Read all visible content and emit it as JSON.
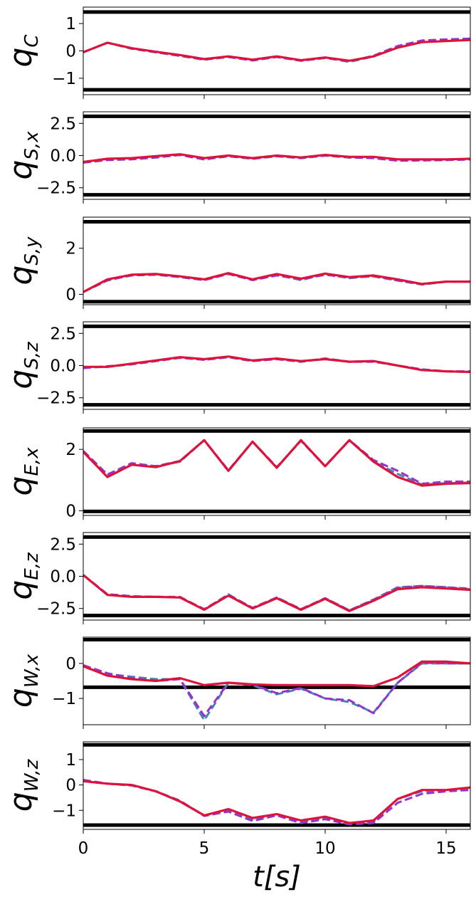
{
  "chart_data": {
    "type": "line",
    "xlabel": {
      "base": "t[s]"
    },
    "xlim": [
      0,
      16
    ],
    "xticks": [
      0,
      5,
      10,
      15
    ],
    "x": [
      0,
      1,
      2,
      3,
      4,
      5,
      6,
      7,
      8,
      9,
      10,
      11,
      12,
      13,
      14,
      15,
      16
    ],
    "colors": {
      "limit": "#000000",
      "red": "#dc143c",
      "purple": "#9932cc",
      "blue": "#4682b4"
    },
    "panels": [
      {
        "ylabel": {
          "base": "q",
          "sub": "C"
        },
        "ylim": [
          -1.6,
          1.6
        ],
        "yticks": [
          1,
          0,
          -1
        ],
        "limits": [
          1.42,
          -1.42
        ],
        "series": [
          {
            "color": "blue",
            "dash": true,
            "values": [
              -0.05,
              0.3,
              0.1,
              -0.05,
              -0.18,
              -0.32,
              -0.22,
              -0.34,
              -0.22,
              -0.36,
              -0.25,
              -0.4,
              -0.2,
              0.15,
              0.35,
              0.38,
              0.42
            ]
          },
          {
            "color": "purple",
            "dash": true,
            "values": [
              -0.05,
              0.3,
              0.08,
              -0.05,
              -0.18,
              -0.32,
              -0.22,
              -0.35,
              -0.22,
              -0.36,
              -0.26,
              -0.38,
              -0.18,
              0.18,
              0.38,
              0.42,
              0.45
            ]
          },
          {
            "color": "red",
            "dash": false,
            "values": [
              -0.05,
              0.3,
              0.1,
              -0.03,
              -0.15,
              -0.3,
              -0.2,
              -0.32,
              -0.2,
              -0.34,
              -0.24,
              -0.36,
              -0.2,
              0.12,
              0.32,
              0.36,
              0.4
            ]
          }
        ]
      },
      {
        "ylabel": {
          "base": "q",
          "sub": "S,x"
        },
        "ylim": [
          -3.4,
          3.4
        ],
        "yticks": [
          "2.5",
          "0.0",
          "−2.5"
        ],
        "ytickvals": [
          2.5,
          0,
          -2.5
        ],
        "limits": [
          3.05,
          -3.05
        ],
        "series": [
          {
            "color": "blue",
            "dash": true,
            "values": [
              -0.55,
              -0.35,
              -0.3,
              -0.15,
              0.05,
              -0.3,
              -0.05,
              -0.25,
              -0.05,
              -0.2,
              0,
              -0.15,
              -0.2,
              -0.4,
              -0.35,
              -0.35,
              -0.3
            ]
          },
          {
            "color": "purple",
            "dash": true,
            "values": [
              -0.55,
              -0.35,
              -0.28,
              -0.15,
              0.05,
              -0.3,
              -0.05,
              -0.25,
              -0.05,
              -0.2,
              0,
              -0.15,
              -0.2,
              -0.4,
              -0.38,
              -0.35,
              -0.3
            ]
          },
          {
            "color": "red",
            "dash": false,
            "values": [
              -0.5,
              -0.25,
              -0.2,
              -0.05,
              0.1,
              -0.2,
              0,
              -0.2,
              0,
              -0.15,
              0.05,
              -0.1,
              -0.1,
              -0.3,
              -0.3,
              -0.3,
              -0.25
            ]
          }
        ]
      },
      {
        "ylabel": {
          "base": "q",
          "sub": "S,y"
        },
        "ylim": [
          -0.45,
          3.35
        ],
        "yticks": [
          2,
          0
        ],
        "limits": [
          3.15,
          -0.32
        ],
        "series": [
          {
            "color": "blue",
            "dash": true,
            "values": [
              0.1,
              0.6,
              0.85,
              0.88,
              0.75,
              0.62,
              0.9,
              0.62,
              0.85,
              0.62,
              0.88,
              0.7,
              0.8,
              0.6,
              0.42,
              0.55,
              0.55
            ]
          },
          {
            "color": "purple",
            "dash": true,
            "values": [
              0.1,
              0.62,
              0.82,
              0.85,
              0.75,
              0.62,
              0.88,
              0.62,
              0.82,
              0.65,
              0.85,
              0.72,
              0.78,
              0.6,
              0.45,
              0.55,
              0.55
            ]
          },
          {
            "color": "red",
            "dash": false,
            "values": [
              0.1,
              0.65,
              0.85,
              0.88,
              0.78,
              0.65,
              0.92,
              0.65,
              0.88,
              0.68,
              0.9,
              0.75,
              0.82,
              0.65,
              0.45,
              0.55,
              0.55
            ]
          }
        ]
      },
      {
        "ylabel": {
          "base": "q",
          "sub": "S,z"
        },
        "ylim": [
          -3.4,
          3.4
        ],
        "yticks": [
          "2.5",
          "0.0",
          "−2.5"
        ],
        "ytickvals": [
          2.5,
          0,
          -2.5
        ],
        "limits": [
          3.05,
          -3.05
        ],
        "series": [
          {
            "color": "blue",
            "dash": true,
            "values": [
              -0.15,
              -0.1,
              0.1,
              0.35,
              0.65,
              0.45,
              0.65,
              0.35,
              0.55,
              0.3,
              0.55,
              0.3,
              0.35,
              0.0,
              -0.3,
              -0.45,
              -0.5
            ]
          },
          {
            "color": "purple",
            "dash": true,
            "values": [
              -0.2,
              -0.05,
              0.1,
              0.35,
              0.6,
              0.45,
              0.65,
              0.35,
              0.5,
              0.3,
              0.55,
              0.3,
              0.3,
              0.0,
              -0.3,
              -0.45,
              -0.45
            ]
          },
          {
            "color": "red",
            "dash": false,
            "values": [
              -0.1,
              -0.1,
              0.15,
              0.4,
              0.65,
              0.5,
              0.7,
              0.4,
              0.55,
              0.35,
              0.5,
              0.3,
              0.35,
              0.0,
              -0.35,
              -0.45,
              -0.5
            ]
          }
        ]
      },
      {
        "ylabel": {
          "base": "q",
          "sub": "E,x"
        },
        "ylim": [
          -0.15,
          2.7
        ],
        "yticks": [
          2,
          0
        ],
        "limits": [
          2.6,
          -0.02
        ],
        "series": [
          {
            "color": "blue",
            "dash": true,
            "values": [
              1.95,
              1.15,
              1.5,
              1.45,
              1.6,
              2.3,
              1.3,
              2.25,
              1.4,
              2.3,
              1.45,
              2.3,
              1.6,
              1.2,
              0.85,
              0.9,
              0.92
            ]
          },
          {
            "color": "purple",
            "dash": true,
            "values": [
              1.95,
              1.18,
              1.55,
              1.45,
              1.62,
              2.3,
              1.32,
              2.25,
              1.42,
              2.28,
              1.45,
              2.3,
              1.65,
              1.3,
              0.88,
              0.95,
              0.95
            ]
          },
          {
            "color": "red",
            "dash": false,
            "values": [
              1.92,
              1.1,
              1.5,
              1.42,
              1.62,
              2.3,
              1.3,
              2.25,
              1.4,
              2.3,
              1.45,
              2.3,
              1.6,
              1.1,
              0.82,
              0.88,
              0.9
            ]
          }
        ]
      },
      {
        "ylabel": {
          "base": "q",
          "sub": "E,z"
        },
        "ylim": [
          -3.4,
          3.4
        ],
        "yticks": [
          "2.5",
          "0.0",
          "−2.5"
        ],
        "ytickvals": [
          2.5,
          0,
          -2.5
        ],
        "limits": [
          3.05,
          -3.05
        ],
        "series": [
          {
            "color": "blue",
            "dash": true,
            "values": [
              0.1,
              -1.4,
              -1.55,
              -1.6,
              -1.6,
              -2.6,
              -1.4,
              -2.5,
              -1.65,
              -2.6,
              -1.7,
              -2.65,
              -1.8,
              -0.85,
              -0.75,
              -0.85,
              -0.95
            ]
          },
          {
            "color": "purple",
            "dash": true,
            "values": [
              0.1,
              -1.4,
              -1.55,
              -1.6,
              -1.62,
              -2.55,
              -1.45,
              -2.45,
              -1.65,
              -2.55,
              -1.7,
              -2.65,
              -1.85,
              -0.9,
              -0.75,
              -0.85,
              -1.0
            ]
          },
          {
            "color": "red",
            "dash": false,
            "values": [
              0.1,
              -1.45,
              -1.6,
              -1.6,
              -1.65,
              -2.6,
              -1.5,
              -2.5,
              -1.7,
              -2.6,
              -1.75,
              -2.7,
              -1.9,
              -1.0,
              -0.85,
              -0.95,
              -1.05
            ]
          }
        ]
      },
      {
        "ylabel": {
          "base": "q",
          "sub": "W,x"
        },
        "ylim": [
          -1.75,
          0.75
        ],
        "yticks": [
          0,
          -1
        ],
        "limits": [
          0.68,
          -0.68
        ],
        "series": [
          {
            "color": "blue",
            "dash": true,
            "values": [
              -0.08,
              -0.3,
              -0.38,
              -0.45,
              -0.45,
              -1.62,
              -0.55,
              -0.62,
              -0.88,
              -0.72,
              -1.0,
              -1.1,
              -1.4,
              -0.55,
              0.0,
              0.0,
              0.0
            ]
          },
          {
            "color": "purple",
            "dash": true,
            "values": [
              -0.05,
              -0.28,
              -0.42,
              -0.5,
              -0.45,
              -1.5,
              -0.55,
              -0.6,
              -0.85,
              -0.7,
              -1.0,
              -1.05,
              -1.42,
              -0.55,
              0.02,
              0.0,
              0.0
            ]
          },
          {
            "color": "red",
            "dash": false,
            "values": [
              -0.08,
              -0.35,
              -0.45,
              -0.5,
              -0.42,
              -0.62,
              -0.55,
              -0.6,
              -0.62,
              -0.62,
              -0.62,
              -0.62,
              -0.65,
              -0.4,
              0.05,
              0.05,
              0.0
            ]
          }
        ]
      },
      {
        "ylabel": {
          "base": "q",
          "sub": "W,z"
        },
        "ylim": [
          -1.75,
          1.7
        ],
        "yticks": [
          1,
          0,
          -1
        ],
        "limits": [
          1.58,
          -1.58
        ],
        "series": [
          {
            "color": "blue",
            "dash": true,
            "values": [
              0.15,
              0.05,
              -0.02,
              -0.25,
              -0.65,
              -1.2,
              -1.0,
              -1.35,
              -1.15,
              -1.45,
              -1.3,
              -1.5,
              -1.45,
              -0.55,
              -0.25,
              -0.2,
              -0.15
            ]
          },
          {
            "color": "purple",
            "dash": true,
            "values": [
              0.2,
              0.05,
              -0.02,
              -0.25,
              -0.62,
              -1.22,
              -1.05,
              -1.42,
              -1.2,
              -1.5,
              -1.35,
              -1.55,
              -1.5,
              -0.7,
              -0.35,
              -0.25,
              -0.2
            ]
          },
          {
            "color": "red",
            "dash": false,
            "values": [
              0.15,
              0.05,
              0.0,
              -0.25,
              -0.65,
              -1.2,
              -0.95,
              -1.3,
              -1.15,
              -1.4,
              -1.25,
              -1.5,
              -1.4,
              -0.55,
              -0.2,
              -0.2,
              -0.1
            ]
          }
        ]
      }
    ]
  }
}
